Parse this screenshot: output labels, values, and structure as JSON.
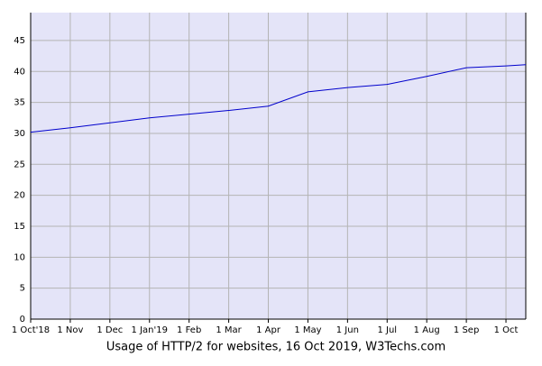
{
  "chart_data": {
    "type": "line",
    "title": "Usage of HTTP/2 for websites, 16 Oct 2019, W3Techs.com",
    "x": [
      0,
      1,
      2,
      3,
      4,
      5,
      6,
      7,
      8,
      9,
      10,
      11,
      12,
      12.5
    ],
    "series": [
      {
        "name": "HTTP/2",
        "color": "#0000cc",
        "values": [
          30.2,
          30.9,
          31.7,
          32.5,
          33.1,
          33.7,
          34.4,
          36.7,
          37.4,
          37.9,
          39.2,
          40.6,
          40.9,
          41.1
        ]
      }
    ],
    "xlim": [
      0,
      12.5
    ],
    "xticks": [
      {
        "value": 0,
        "label": "1 Oct'18"
      },
      {
        "value": 1,
        "label": "1 Nov"
      },
      {
        "value": 2,
        "label": "1 Dec"
      },
      {
        "value": 3,
        "label": "1 Jan'19"
      },
      {
        "value": 4,
        "label": "1 Feb"
      },
      {
        "value": 5,
        "label": "1 Mar"
      },
      {
        "value": 6,
        "label": "1 Apr"
      },
      {
        "value": 7,
        "label": "1 May"
      },
      {
        "value": 8,
        "label": "1 Jun"
      },
      {
        "value": 9,
        "label": "1 Jul"
      },
      {
        "value": 10,
        "label": "1 Aug"
      },
      {
        "value": 11,
        "label": "1 Sep"
      },
      {
        "value": 12,
        "label": "1 Oct"
      }
    ],
    "ylim": [
      0,
      49.5
    ],
    "yticks": [
      0,
      5,
      10,
      15,
      20,
      25,
      30,
      35,
      40,
      45
    ],
    "grid": true,
    "background": "#e4e4f8"
  }
}
